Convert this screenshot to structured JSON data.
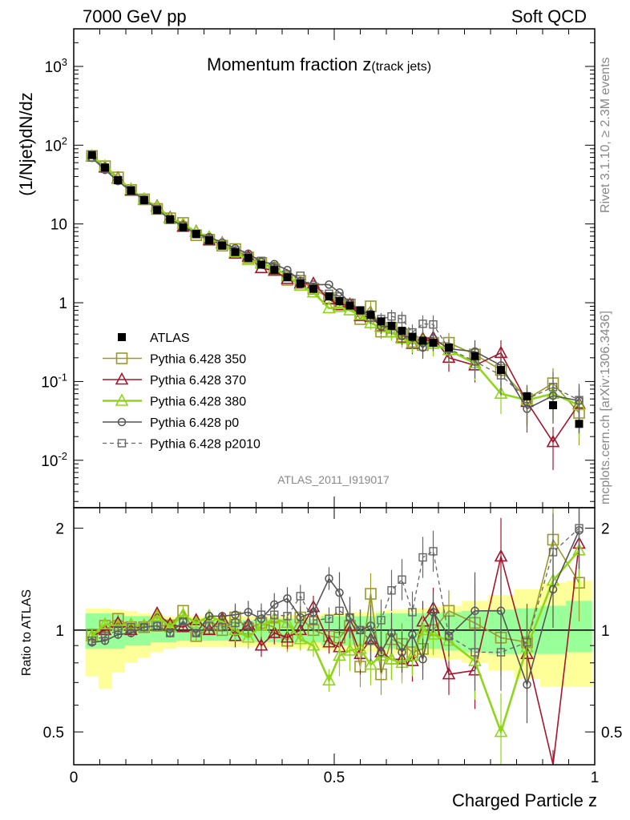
{
  "header": {
    "left": "7000 GeV pp",
    "right": "Soft QCD"
  },
  "side_labels": {
    "rivet": "Rivet 3.1.10, ≥ 2.3M events",
    "mcplots": "mcplots.cern.ch [arXiv:1306.3436]"
  },
  "plot_title_main": "Momentum fraction z",
  "plot_title_sub": "(track jets)",
  "analysis_id": "ATLAS_2011_I919017",
  "colors": {
    "data": "#000000",
    "p350": "#9a9a2a",
    "p370": "#a3162e",
    "p380": "#8fd61a",
    "p0": "#555555",
    "p2010": "#666666",
    "band_yellow": "#ffff99",
    "band_green": "#99ff99"
  },
  "chart_data": [
    {
      "type": "line",
      "ylabel": "(1/Njet)dN/dz",
      "xlabel": "",
      "yscale": "log",
      "xlim": [
        0,
        1
      ],
      "ylim": [
        0.0025,
        3000
      ],
      "x_ticks": [],
      "y_tick_labels": [
        "10^-2",
        "10^-1",
        "1",
        "10",
        "10^2",
        "10^3"
      ],
      "legend_position": "lower-left",
      "x": [
        0.035,
        0.06,
        0.085,
        0.11,
        0.135,
        0.16,
        0.185,
        0.21,
        0.235,
        0.26,
        0.285,
        0.31,
        0.335,
        0.36,
        0.385,
        0.41,
        0.435,
        0.46,
        0.49,
        0.51,
        0.53,
        0.55,
        0.57,
        0.59,
        0.61,
        0.63,
        0.65,
        0.67,
        0.69,
        0.72,
        0.77,
        0.82,
        0.87,
        0.92,
        0.97
      ],
      "series": [
        {
          "name": "ATLAS",
          "key": "data",
          "values": [
            75,
            52,
            36,
            26.5,
            20,
            15,
            11.5,
            9,
            7.5,
            6.2,
            5.3,
            4.4,
            3.7,
            3.05,
            2.6,
            2.1,
            1.75,
            1.5,
            1.2,
            1.05,
            0.92,
            0.8,
            0.7,
            0.58,
            0.51,
            0.44,
            0.37,
            0.33,
            0.31,
            0.27,
            0.21,
            0.14,
            0.065,
            0.05,
            0.029
          ]
        },
        {
          "name": "Pythia 6.428 350",
          "key": "p350",
          "values": [
            73,
            54,
            39,
            27,
            20.5,
            15.5,
            11.8,
            10.3,
            7.2,
            6.3,
            5.3,
            4.8,
            3.75,
            3.2,
            2.65,
            1.95,
            1.9,
            1.5,
            1.15,
            1.0,
            0.95,
            0.62,
            0.9,
            0.43,
            0.48,
            0.4,
            0.32,
            0.29,
            0.31,
            0.31,
            0.22,
            0.14,
            0.06,
            0.095,
            0.04
          ]
        },
        {
          "name": "Pythia 6.428 370",
          "key": "p370",
          "values": [
            72,
            52,
            38,
            26.5,
            20.5,
            16.8,
            12,
            9.2,
            8,
            6.2,
            5.7,
            4.2,
            3.85,
            2.75,
            2.55,
            2.0,
            1.75,
            1.75,
            1.1,
            0.93,
            0.95,
            0.68,
            0.66,
            0.5,
            0.42,
            0.36,
            0.3,
            0.35,
            0.36,
            0.2,
            0.16,
            0.23,
            0.055,
            0.017,
            0.052
          ]
        },
        {
          "name": "Pythia 6.428 380",
          "key": "p380",
          "values": [
            72,
            54,
            37,
            27.5,
            20.5,
            16.5,
            11.7,
            10,
            7.9,
            6.8,
            5.6,
            4.4,
            3.5,
            3.15,
            2.8,
            2.2,
            1.65,
            1.35,
            0.85,
            0.88,
            0.8,
            0.7,
            0.55,
            0.49,
            0.42,
            0.35,
            0.31,
            0.33,
            0.3,
            0.25,
            0.17,
            0.07,
            0.058,
            0.07,
            0.05
          ]
        },
        {
          "name": "Pythia 6.428 p0",
          "key": "p0",
          "values": [
            69,
            48.5,
            35,
            26,
            20.5,
            15.5,
            11.3,
            9.5,
            7.4,
            6.8,
            5.8,
            4.9,
            4.2,
            3.3,
            3.1,
            2.6,
            1.9,
            1.7,
            1.7,
            1.35,
            1.0,
            0.8,
            0.72,
            0.5,
            0.5,
            0.38,
            0.36,
            0.27,
            0.35,
            0.26,
            0.24,
            0.16,
            0.045,
            0.066,
            0.057
          ]
        },
        {
          "name": "Pythia 6.428 p2010",
          "key": "p2010",
          "values": [
            70,
            50,
            36,
            27,
            20.5,
            15.5,
            11.3,
            9.5,
            7.4,
            6.4,
            5.4,
            4.6,
            3.8,
            3.4,
            2.9,
            2.3,
            2.2,
            1.6,
            1.3,
            1.2,
            1.0,
            0.8,
            0.65,
            0.62,
            0.67,
            0.62,
            0.42,
            0.54,
            0.53,
            0.26,
            0.18,
            0.12,
            0.06,
            0.085,
            0.058
          ]
        }
      ]
    },
    {
      "type": "line",
      "ylabel": "Ratio to ATLAS",
      "xlabel": "Charged Particle z",
      "xlim": [
        0,
        1
      ],
      "ylim": [
        0.4,
        2.3
      ],
      "yscale": "log",
      "x_tick_labels": [
        "0",
        "0.5",
        "1"
      ],
      "y_tick_labels": [
        "0.5",
        "1",
        "2"
      ],
      "x": [
        0.035,
        0.06,
        0.085,
        0.11,
        0.135,
        0.16,
        0.185,
        0.21,
        0.235,
        0.26,
        0.285,
        0.31,
        0.335,
        0.36,
        0.385,
        0.41,
        0.435,
        0.46,
        0.49,
        0.51,
        0.53,
        0.55,
        0.57,
        0.59,
        0.61,
        0.63,
        0.65,
        0.67,
        0.69,
        0.72,
        0.77,
        0.82,
        0.87,
        0.92,
        0.97
      ],
      "band_green": [
        [
          0.88,
          1.12
        ],
        [
          0.88,
          1.12
        ],
        [
          0.88,
          1.12
        ],
        [
          0.9,
          1.1
        ],
        [
          0.9,
          1.1
        ],
        [
          0.92,
          1.08
        ],
        [
          0.92,
          1.08
        ],
        [
          0.93,
          1.07
        ],
        [
          0.93,
          1.07
        ],
        [
          0.93,
          1.07
        ],
        [
          0.93,
          1.07
        ],
        [
          0.93,
          1.07
        ],
        [
          0.93,
          1.07
        ],
        [
          0.92,
          1.08
        ],
        [
          0.92,
          1.08
        ],
        [
          0.92,
          1.08
        ],
        [
          0.92,
          1.08
        ],
        [
          0.92,
          1.08
        ],
        [
          0.9,
          1.1
        ],
        [
          0.9,
          1.1
        ],
        [
          0.9,
          1.1
        ],
        [
          0.9,
          1.1
        ],
        [
          0.9,
          1.1
        ],
        [
          0.88,
          1.12
        ],
        [
          0.88,
          1.12
        ],
        [
          0.88,
          1.12
        ],
        [
          0.88,
          1.12
        ],
        [
          0.88,
          1.12
        ],
        [
          0.88,
          1.12
        ],
        [
          0.87,
          1.13
        ],
        [
          0.86,
          1.14
        ],
        [
          0.85,
          1.15
        ],
        [
          0.85,
          1.16
        ],
        [
          0.85,
          1.18
        ],
        [
          0.86,
          1.22
        ]
      ],
      "band_yellow": [
        [
          0.73,
          1.16
        ],
        [
          0.67,
          1.16
        ],
        [
          0.75,
          1.15
        ],
        [
          0.8,
          1.14
        ],
        [
          0.83,
          1.12
        ],
        [
          0.86,
          1.11
        ],
        [
          0.88,
          1.1
        ],
        [
          0.89,
          1.1
        ],
        [
          0.89,
          1.1
        ],
        [
          0.89,
          1.1
        ],
        [
          0.89,
          1.1
        ],
        [
          0.89,
          1.1
        ],
        [
          0.89,
          1.1
        ],
        [
          0.89,
          1.1
        ],
        [
          0.89,
          1.1
        ],
        [
          0.88,
          1.11
        ],
        [
          0.88,
          1.11
        ],
        [
          0.88,
          1.11
        ],
        [
          0.87,
          1.12
        ],
        [
          0.87,
          1.12
        ],
        [
          0.86,
          1.13
        ],
        [
          0.86,
          1.13
        ],
        [
          0.86,
          1.13
        ],
        [
          0.85,
          1.14
        ],
        [
          0.85,
          1.15
        ],
        [
          0.85,
          1.15
        ],
        [
          0.84,
          1.16
        ],
        [
          0.84,
          1.16
        ],
        [
          0.83,
          1.17
        ],
        [
          0.82,
          1.18
        ],
        [
          0.8,
          1.22
        ],
        [
          0.76,
          1.27
        ],
        [
          0.72,
          1.32
        ],
        [
          0.68,
          1.38
        ],
        [
          0.68,
          1.4
        ]
      ],
      "series": [
        {
          "name": "Pythia 6.428 350",
          "key": "p350",
          "values": [
            0.97,
            1.03,
            1.08,
            1.02,
            1.02,
            1.03,
            1.03,
            1.14,
            0.96,
            1.01,
            1.0,
            1.09,
            1.01,
            1.05,
            1.02,
            0.93,
            1.09,
            1.0,
            0.96,
            0.95,
            1.03,
            0.78,
            1.28,
            0.74,
            0.94,
            0.91,
            0.86,
            0.88,
            1.0,
            1.14,
            1.05,
            0.95,
            0.92,
            1.85,
            1.38
          ]
        },
        {
          "name": "Pythia 6.428 370",
          "key": "p370",
          "values": [
            0.96,
            1.0,
            1.05,
            1.0,
            1.03,
            1.12,
            1.04,
            1.02,
            1.07,
            1.0,
            1.08,
            0.96,
            1.04,
            0.9,
            0.98,
            0.95,
            1.0,
            1.17,
            0.92,
            0.89,
            1.03,
            0.85,
            0.94,
            0.86,
            0.82,
            0.82,
            0.81,
            1.06,
            1.16,
            0.74,
            0.76,
            1.65,
            0.85,
            0.34,
            1.8
          ]
        },
        {
          "name": "Pythia 6.428 380",
          "key": "p380",
          "values": [
            0.96,
            1.04,
            1.03,
            1.04,
            1.03,
            1.1,
            1.02,
            1.11,
            1.05,
            1.1,
            1.06,
            1.0,
            0.95,
            1.03,
            1.08,
            1.05,
            0.94,
            0.9,
            0.71,
            0.84,
            0.87,
            0.88,
            0.79,
            0.84,
            0.82,
            0.8,
            0.84,
            1.0,
            0.97,
            0.93,
            0.81,
            0.5,
            0.89,
            1.4,
            1.72
          ]
        },
        {
          "name": "Pythia 6.428 p0",
          "key": "p0",
          "values": [
            0.92,
            0.93,
            0.97,
            0.98,
            1.02,
            1.03,
            0.98,
            1.06,
            0.98,
            1.1,
            1.1,
            1.11,
            1.13,
            1.08,
            1.19,
            1.24,
            1.09,
            1.13,
            1.42,
            1.29,
            1.09,
            1.0,
            1.03,
            0.86,
            0.98,
            0.86,
            0.97,
            0.82,
            1.13,
            0.96,
            1.14,
            1.14,
            0.69,
            1.32,
            1.97
          ]
        },
        {
          "name": "Pythia 6.428 p2010",
          "key": "p2010",
          "values": [
            0.93,
            0.96,
            1.0,
            1.02,
            1.02,
            1.03,
            0.98,
            1.06,
            0.98,
            1.03,
            1.02,
            1.05,
            1.03,
            1.11,
            1.11,
            1.1,
            1.26,
            1.07,
            1.08,
            1.14,
            1.09,
            1.0,
            0.93,
            1.07,
            1.31,
            1.41,
            1.13,
            1.64,
            1.71,
            0.96,
            0.86,
            0.86,
            0.92,
            1.7,
            2.0
          ]
        }
      ]
    }
  ]
}
